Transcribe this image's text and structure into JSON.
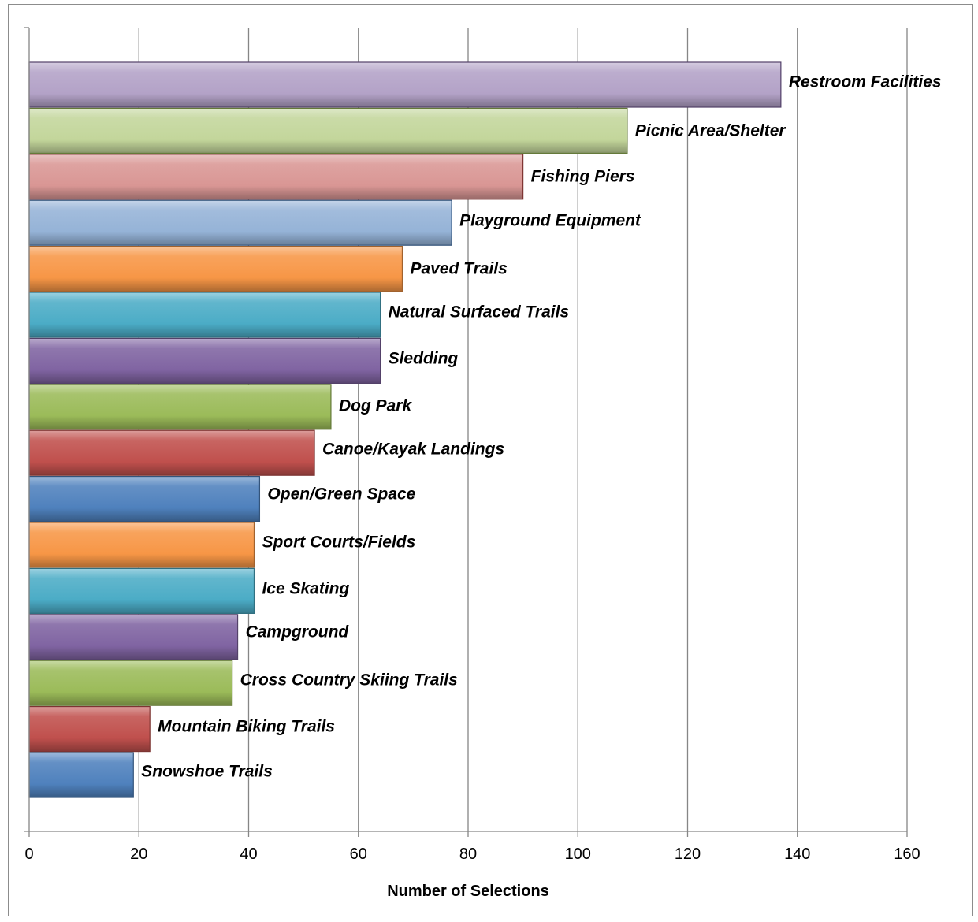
{
  "chart_data": {
    "type": "bar",
    "orientation": "horizontal",
    "title": "",
    "xlabel": "Number of Selections",
    "ylabel": "",
    "xlim": [
      0,
      160
    ],
    "xticks": [
      0,
      20,
      40,
      60,
      80,
      100,
      120,
      140,
      160
    ],
    "grid": true,
    "categories": [
      "Restroom Facilities",
      "Picnic Area/Shelter",
      "Fishing Piers",
      "Playground Equipment",
      "Paved Trails",
      "Natural Surfaced Trails",
      "Sledding",
      "Dog Park",
      "Canoe/Kayak Landings",
      "Open/Green Space",
      "Sport Courts/Fields",
      "Ice Skating",
      "Campground",
      "Cross Country Skiing Trails",
      "Mountain Biking Trails",
      "Snowshoe Trails"
    ],
    "values": [
      137,
      109,
      90,
      77,
      68,
      64,
      64,
      55,
      52,
      42,
      41,
      41,
      38,
      37,
      22,
      19
    ],
    "colors": [
      "#8064a2",
      "#9bbb59",
      "#c0504d",
      "#4f81bd",
      "#f79646",
      "#4bacc6",
      "#8064a2",
      "#9bbb59",
      "#c0504d",
      "#4f81bd",
      "#f79646",
      "#4bacc6",
      "#8064a2",
      "#9bbb59",
      "#c0504d",
      "#4f81bd"
    ],
    "pale_colors": [
      "#b3a2c7",
      "#c3d69b",
      "#d99694",
      "#95b3d7",
      null,
      null,
      null,
      null,
      null,
      null,
      null,
      null,
      null,
      null,
      null,
      null
    ]
  }
}
